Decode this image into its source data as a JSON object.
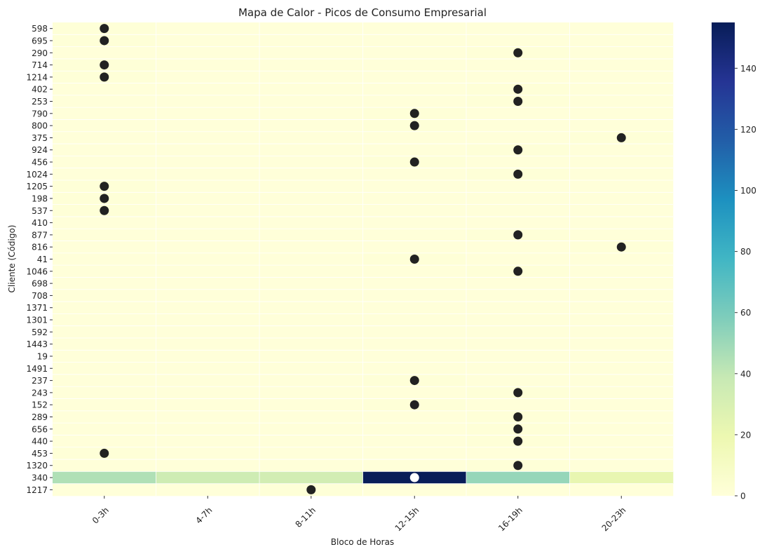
{
  "chart_data": {
    "type": "heatmap",
    "title": "Mapa de Calor - Picos de Consumo Empresarial",
    "xlabel": "Bloco de Horas",
    "ylabel": "Cliente (Código)",
    "x_categories": [
      "0-3h",
      "4-7h",
      "8-11h",
      "12-15h",
      "16-19h",
      "20-23h"
    ],
    "y_categories": [
      "598",
      "695",
      "290",
      "714",
      "1214",
      "402",
      "253",
      "790",
      "800",
      "375",
      "924",
      "456",
      "1024",
      "1205",
      "198",
      "537",
      "410",
      "877",
      "816",
      "41",
      "1046",
      "698",
      "708",
      "1371",
      "1301",
      "592",
      "1443",
      "19",
      "1491",
      "237",
      "243",
      "152",
      "289",
      "656",
      "440",
      "453",
      "1320",
      "340",
      "1217"
    ],
    "values": [
      [
        1,
        0,
        0,
        0,
        0,
        0
      ],
      [
        1,
        0,
        0,
        0,
        0,
        0
      ],
      [
        0,
        0,
        0,
        0,
        1,
        0
      ],
      [
        1,
        0,
        0,
        0,
        0,
        0
      ],
      [
        1,
        0,
        0,
        0,
        0,
        0
      ],
      [
        0,
        0,
        0,
        0,
        1,
        0
      ],
      [
        0,
        0,
        0,
        0,
        1,
        0
      ],
      [
        0,
        0,
        0,
        1,
        0,
        0
      ],
      [
        0,
        0,
        0,
        1,
        0,
        0
      ],
      [
        0,
        0,
        0,
        0,
        0,
        1
      ],
      [
        0,
        0,
        0,
        0,
        1,
        0
      ],
      [
        0,
        0,
        0,
        1,
        0,
        0
      ],
      [
        0,
        0,
        0,
        0,
        1,
        0
      ],
      [
        1,
        0,
        0,
        0,
        0,
        0
      ],
      [
        1,
        0,
        0,
        0,
        0,
        0
      ],
      [
        1,
        0,
        0,
        0,
        0,
        0
      ],
      [
        0,
        0,
        0,
        0,
        0,
        0
      ],
      [
        0,
        0,
        0,
        0,
        1,
        0
      ],
      [
        0,
        0,
        0,
        0,
        0,
        1
      ],
      [
        0,
        0,
        0,
        1,
        0,
        0
      ],
      [
        0,
        0,
        0,
        0,
        1,
        0
      ],
      [
        0,
        0,
        0,
        0,
        0,
        0
      ],
      [
        0,
        0,
        0,
        0,
        0,
        0
      ],
      [
        0,
        0,
        0,
        0,
        0,
        0
      ],
      [
        0,
        0,
        0,
        0,
        0,
        0
      ],
      [
        0,
        0,
        0,
        0,
        0,
        0
      ],
      [
        0,
        0,
        0,
        0,
        0,
        0
      ],
      [
        0,
        0,
        0,
        0,
        0,
        0
      ],
      [
        0,
        0,
        0,
        0,
        0,
        0
      ],
      [
        0,
        0,
        0,
        1,
        0,
        0
      ],
      [
        0,
        0,
        0,
        0,
        1,
        0
      ],
      [
        0,
        0,
        0,
        1,
        0,
        0
      ],
      [
        0,
        0,
        0,
        0,
        1,
        0
      ],
      [
        0,
        0,
        0,
        0,
        1,
        0
      ],
      [
        0,
        0,
        0,
        0,
        1,
        0
      ],
      [
        1,
        0,
        0,
        0,
        0,
        0
      ],
      [
        0,
        0,
        0,
        0,
        1,
        0
      ],
      [
        45,
        35,
        33,
        155,
        52,
        22
      ],
      [
        0,
        0,
        1,
        0,
        0,
        0
      ]
    ],
    "peaks": [
      [
        "598",
        "0-3h"
      ],
      [
        "695",
        "0-3h"
      ],
      [
        "290",
        "16-19h"
      ],
      [
        "714",
        "0-3h"
      ],
      [
        "1214",
        "0-3h"
      ],
      [
        "402",
        "16-19h"
      ],
      [
        "253",
        "16-19h"
      ],
      [
        "790",
        "12-15h"
      ],
      [
        "800",
        "12-15h"
      ],
      [
        "375",
        "20-23h"
      ],
      [
        "924",
        "16-19h"
      ],
      [
        "456",
        "12-15h"
      ],
      [
        "1024",
        "16-19h"
      ],
      [
        "1205",
        "0-3h"
      ],
      [
        "198",
        "0-3h"
      ],
      [
        "537",
        "0-3h"
      ],
      [
        "877",
        "16-19h"
      ],
      [
        "816",
        "20-23h"
      ],
      [
        "41",
        "12-15h"
      ],
      [
        "1046",
        "16-19h"
      ],
      [
        "237",
        "12-15h"
      ],
      [
        "243",
        "16-19h"
      ],
      [
        "152",
        "12-15h"
      ],
      [
        "289",
        "16-19h"
      ],
      [
        "656",
        "16-19h"
      ],
      [
        "440",
        "16-19h"
      ],
      [
        "453",
        "0-3h"
      ],
      [
        "1320",
        "16-19h"
      ],
      [
        "340",
        "12-15h"
      ],
      [
        "1217",
        "8-11h"
      ]
    ],
    "colorbar": {
      "min": 0,
      "max": 155,
      "ticks": [
        0,
        20,
        40,
        60,
        80,
        100,
        120,
        140
      ]
    },
    "colormap": "YlGnBu",
    "grid": true,
    "marker_color": "#222222",
    "marker_color_on_dark": "#ffffff"
  }
}
